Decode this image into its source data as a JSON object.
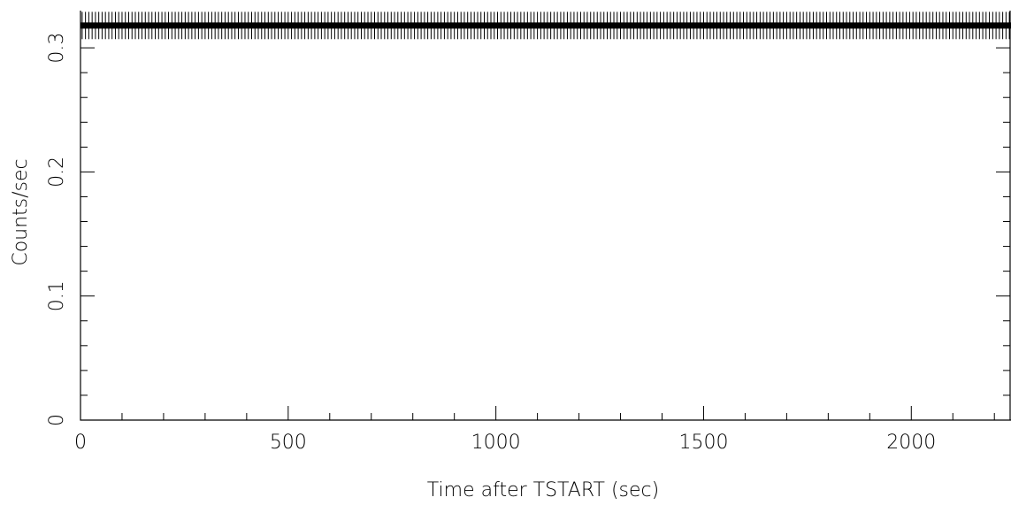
{
  "chart_data": {
    "type": "line",
    "title": "",
    "xlabel": "Time after TSTART (sec)",
    "ylabel": "Counts/sec",
    "xlim": [
      0,
      2240
    ],
    "ylim": [
      0,
      0.33
    ],
    "x_ticks": [
      0,
      500,
      1000,
      1500,
      2000
    ],
    "x_tick_labels": [
      "0",
      "500",
      "1000",
      "1500",
      "2000"
    ],
    "x_minor_step": 100,
    "y_ticks": [
      0,
      0.1,
      0.2,
      0.3
    ],
    "y_tick_labels": [
      "0",
      "0.1",
      "0.2",
      "0.3"
    ],
    "y_minor_step": 0.02,
    "grid": false,
    "series": [
      {
        "bin_width": 8,
        "x_start": 4,
        "x_end": 2236,
        "value": 0.318,
        "error": 0.011
      }
    ]
  }
}
